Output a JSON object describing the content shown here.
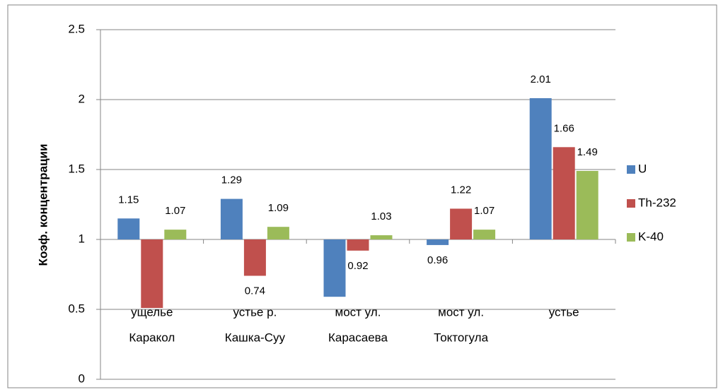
{
  "chart_data": {
    "type": "bar",
    "y_axis_label": "Коэф. концентрации",
    "categories": [
      [
        "ущелье",
        "Каракол"
      ],
      [
        "устье р.",
        "Кашка-Суу"
      ],
      [
        "мост ул.",
        "Карасаева"
      ],
      [
        "мост ул.",
        "Токтогула"
      ],
      [
        "устье"
      ]
    ],
    "series": [
      {
        "name": "U",
        "color": "#4f81bd",
        "values": [
          1.15,
          1.29,
          0.59,
          0.96,
          2.01
        ],
        "value_labels": [
          "1.15",
          "1.29",
          null,
          "0.96",
          "2.01"
        ]
      },
      {
        "name": "Th-232",
        "color": "#c0504d",
        "values": [
          0.51,
          0.74,
          0.92,
          1.22,
          1.66
        ],
        "value_labels": [
          null,
          "0.74",
          "0.92",
          "1.22",
          "1.66"
        ]
      },
      {
        "name": "K-40",
        "color": "#9bbb59",
        "values": [
          1.07,
          1.09,
          1.03,
          1.07,
          1.49
        ],
        "value_labels": [
          "1.07",
          "1.09",
          "1.03",
          "1.07",
          "1.49"
        ]
      }
    ],
    "ylim": [
      0,
      2.5
    ],
    "yticks": [
      0,
      0.5,
      1,
      1.5,
      2,
      2.5
    ],
    "x_axis_crosses_at": 1,
    "grid": true,
    "legend": "right"
  }
}
